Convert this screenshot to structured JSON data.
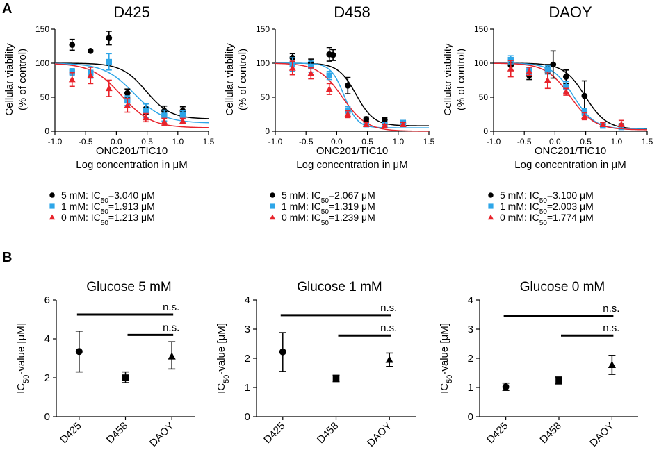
{
  "panel_labels": {
    "a": "A",
    "b": "B"
  },
  "colors": {
    "c5": "#000000",
    "c1": "#2ea6e8",
    "c0": "#e8232b"
  },
  "chart_data": [
    {
      "type": "scatter",
      "panel": "A",
      "title": "D425",
      "xlabel_line1": "ONC201/TIC10",
      "xlabel_line2": "Log concentration in μM",
      "ylabel_line1": "Cellular viability",
      "ylabel_line2": "(% of control)",
      "xlim": [
        -1.0,
        1.5
      ],
      "ylim": [
        0,
        150
      ],
      "xticks": [
        "-1.0",
        "-0.5",
        "0.0",
        "0.5",
        "1.0",
        "1.5"
      ],
      "yticks": [
        "0",
        "50",
        "100",
        "150"
      ],
      "legend": [
        {
          "marker": "circle",
          "label": "5 mM: IC",
          "sub": "50",
          "value": "=3.040 μM"
        },
        {
          "marker": "square",
          "label": "1 mM: IC",
          "sub": "50",
          "value": "=1.913 μM"
        },
        {
          "marker": "triangle",
          "label": "0 mM: IC",
          "sub": "50",
          "value": "=1.213 μM"
        }
      ],
      "series": [
        {
          "name": "5 mM",
          "color_key": "c5",
          "marker": "circle",
          "ic50_log": 0.483,
          "hill": 2.2,
          "bottom": 18,
          "points": [
            [
              -0.72,
              127,
              8
            ],
            [
              -0.42,
              118,
              0
            ],
            [
              -0.12,
              137,
              10
            ],
            [
              0.18,
              56,
              6
            ],
            [
              0.48,
              33,
              8
            ],
            [
              0.78,
              30,
              7
            ],
            [
              1.08,
              30,
              6
            ]
          ]
        },
        {
          "name": "1 mM",
          "color_key": "c1",
          "marker": "square",
          "ic50_log": 0.282,
          "hill": 1.8,
          "bottom": 12,
          "points": [
            [
              -0.72,
              87,
              5
            ],
            [
              -0.42,
              86,
              8
            ],
            [
              -0.12,
              102,
              12
            ],
            [
              0.18,
              45,
              7
            ],
            [
              0.48,
              30,
              10
            ],
            [
              0.78,
              23,
              8
            ],
            [
              1.08,
              24,
              6
            ]
          ]
        },
        {
          "name": "0 mM",
          "color_key": "c0",
          "marker": "triangle",
          "ic50_log": 0.084,
          "hill": 1.8,
          "bottom": 5,
          "points": [
            [
              -0.72,
              76,
              10
            ],
            [
              -0.42,
              82,
              12
            ],
            [
              -0.12,
              63,
              12
            ],
            [
              0.18,
              38,
              10
            ],
            [
              0.48,
              20,
              6
            ],
            [
              0.78,
              14,
              5
            ],
            [
              1.08,
              15,
              4
            ]
          ]
        }
      ]
    },
    {
      "type": "scatter",
      "panel": "A",
      "title": "D458",
      "xlabel_line1": "ONC201/TIC10",
      "xlabel_line2": "Log concentration in μM",
      "ylabel_line1": "Cellular viability",
      "ylabel_line2": "(% of control)",
      "xlim": [
        -1.0,
        1.5
      ],
      "ylim": [
        0,
        150
      ],
      "xticks": [
        "-1.0",
        "-0.5",
        "0.0",
        "0.5",
        "1.0",
        "1.5"
      ],
      "yticks": [
        "0",
        "50",
        "100",
        "150"
      ],
      "legend": [
        {
          "marker": "circle",
          "label": "5 mM: IC",
          "sub": "50",
          "value": "=2.067 μM"
        },
        {
          "marker": "square",
          "label": "1 mM: IC",
          "sub": "50",
          "value": "=1.319 μM"
        },
        {
          "marker": "triangle",
          "label": "0 mM: IC",
          "sub": "50",
          "value": "=1.239 μM"
        }
      ],
      "series": [
        {
          "name": "5 mM",
          "color_key": "c5",
          "marker": "circle",
          "ic50_log": 0.315,
          "hill": 3.0,
          "bottom": 8,
          "points": [
            [
              -0.72,
              108,
              6
            ],
            [
              -0.42,
              100,
              6
            ],
            [
              -0.12,
              113,
              10
            ],
            [
              -0.06,
              112,
              8
            ],
            [
              0.18,
              67,
              12
            ],
            [
              0.48,
              18,
              3
            ],
            [
              0.78,
              17,
              3
            ],
            [
              1.08,
              12,
              4
            ]
          ]
        },
        {
          "name": "1 mM",
          "color_key": "c1",
          "marker": "square",
          "ic50_log": 0.12,
          "hill": 4.0,
          "bottom": 5,
          "points": [
            [
              -0.72,
              98,
              10
            ],
            [
              -0.42,
              95,
              8
            ],
            [
              -0.12,
              82,
              6
            ],
            [
              0.18,
              30,
              6
            ],
            [
              0.48,
              10,
              3
            ],
            [
              0.78,
              10,
              3
            ],
            [
              1.08,
              12,
              4
            ]
          ]
        },
        {
          "name": "0 mM",
          "color_key": "c0",
          "marker": "triangle",
          "ic50_log": 0.093,
          "hill": 2.2,
          "bottom": 0,
          "points": [
            [
              -0.72,
              93,
              10
            ],
            [
              -0.42,
              85,
              8
            ],
            [
              -0.12,
              62,
              8
            ],
            [
              0.18,
              25,
              5
            ],
            [
              0.48,
              10,
              3
            ],
            [
              0.78,
              8,
              2
            ],
            [
              1.08,
              10,
              3
            ]
          ]
        }
      ]
    },
    {
      "type": "scatter",
      "panel": "A",
      "title": "DAOY",
      "xlabel_line1": "ONC201/TIC10",
      "xlabel_line2": "Log concentration in μM",
      "ylabel_line1": "Cellular viability",
      "ylabel_line2": "(% of control)",
      "xlim": [
        -1.0,
        1.5
      ],
      "ylim": [
        0,
        150
      ],
      "xticks": [
        "-1.0",
        "-0.5",
        "0.0",
        "0.5",
        "1.0",
        "1.5"
      ],
      "yticks": [
        "0",
        "50",
        "100",
        "150"
      ],
      "legend": [
        {
          "marker": "circle",
          "label": "5 mM: IC",
          "sub": "50",
          "value": "=3.100 μM"
        },
        {
          "marker": "square",
          "label": "1 mM: IC",
          "sub": "50",
          "value": "=2.003 μM"
        },
        {
          "marker": "triangle",
          "label": "0 mM: IC",
          "sub": "50",
          "value": "=1.774 μM"
        }
      ],
      "series": [
        {
          "name": "5 mM",
          "color_key": "c5",
          "marker": "circle",
          "ic50_log": 0.491,
          "hill": 2.5,
          "bottom": 3,
          "points": [
            [
              -0.72,
              97,
              8
            ],
            [
              -0.42,
              82,
              6
            ],
            [
              -0.12,
              92,
              6
            ],
            [
              -0.03,
              98,
              20
            ],
            [
              0.18,
              80,
              10
            ],
            [
              0.48,
              52,
              22
            ],
            [
              0.78,
              10,
              3
            ],
            [
              1.08,
              8,
              3
            ]
          ]
        },
        {
          "name": "1 mM",
          "color_key": "c1",
          "marker": "square",
          "ic50_log": 0.302,
          "hill": 2.5,
          "bottom": 3,
          "points": [
            [
              -0.72,
              105,
              6
            ],
            [
              -0.42,
              88,
              5
            ],
            [
              -0.12,
              90,
              6
            ],
            [
              0.18,
              65,
              8
            ],
            [
              0.48,
              28,
              5
            ],
            [
              0.78,
              8,
              2
            ],
            [
              1.08,
              6,
              2
            ]
          ]
        },
        {
          "name": "0 mM",
          "color_key": "c0",
          "marker": "triangle",
          "ic50_log": 0.249,
          "hill": 2.2,
          "bottom": 2,
          "points": [
            [
              -0.72,
              92,
              12
            ],
            [
              -0.42,
              88,
              6
            ],
            [
              -0.12,
              75,
              12
            ],
            [
              0.18,
              58,
              5
            ],
            [
              0.48,
              22,
              5
            ],
            [
              0.78,
              10,
              3
            ],
            [
              1.08,
              10,
              6
            ]
          ]
        }
      ]
    },
    {
      "type": "scatter",
      "panel": "B",
      "title": "Glucose 5 mM",
      "ylabel_main": "IC",
      "ylabel_sub": "50",
      "ylabel_rest": "-value [μM]",
      "categories": [
        "D425",
        "D458",
        "DAOY"
      ],
      "ylim": [
        0,
        6
      ],
      "yticks": [
        "0",
        "2",
        "4",
        "6"
      ],
      "points": [
        {
          "marker": "circle",
          "value": 3.35,
          "low": 2.3,
          "high": 4.4
        },
        {
          "marker": "square",
          "value": 2.0,
          "low": 1.75,
          "high": 2.3
        },
        {
          "marker": "triangle",
          "value": 3.1,
          "low": 2.45,
          "high": 3.85
        }
      ],
      "brackets": [
        {
          "from": 0,
          "to": 2,
          "y": 5.25,
          "label": "n.s."
        },
        {
          "from": 1,
          "to": 2,
          "y": 4.2,
          "label": "n.s."
        }
      ]
    },
    {
      "type": "scatter",
      "panel": "B",
      "title": "Glucose 1 mM",
      "ylabel_main": "IC",
      "ylabel_sub": "50",
      "ylabel_rest": "-value [μM]",
      "categories": [
        "D425",
        "D458",
        "DAOY"
      ],
      "ylim": [
        0,
        4
      ],
      "yticks": [
        "0",
        "1",
        "2",
        "3",
        "4"
      ],
      "points": [
        {
          "marker": "circle",
          "value": 2.22,
          "low": 1.55,
          "high": 2.88
        },
        {
          "marker": "square",
          "value": 1.31,
          "low": 1.2,
          "high": 1.42
        },
        {
          "marker": "triangle",
          "value": 1.95,
          "low": 1.72,
          "high": 2.18
        }
      ],
      "brackets": [
        {
          "from": 0,
          "to": 2,
          "y": 3.48,
          "label": "n.s."
        },
        {
          "from": 1,
          "to": 2,
          "y": 2.78,
          "label": "n.s."
        }
      ]
    },
    {
      "type": "scatter",
      "panel": "B",
      "title": "Glucose 0 mM",
      "ylabel_main": "IC",
      "ylabel_sub": "50",
      "ylabel_rest": "-value [μM]",
      "categories": [
        "D425",
        "D458",
        "DAOY"
      ],
      "ylim": [
        0,
        4
      ],
      "yticks": [
        "0",
        "1",
        "2",
        "3",
        "4"
      ],
      "points": [
        {
          "marker": "circle",
          "value": 1.02,
          "low": 0.9,
          "high": 1.15
        },
        {
          "marker": "square",
          "value": 1.24,
          "low": 1.12,
          "high": 1.36
        },
        {
          "marker": "triangle",
          "value": 1.77,
          "low": 1.45,
          "high": 2.1
        }
      ],
      "brackets": [
        {
          "from": 0,
          "to": 2,
          "y": 3.45,
          "label": "n.s."
        },
        {
          "from": 1,
          "to": 2,
          "y": 2.78,
          "label": "n.s."
        }
      ]
    }
  ]
}
